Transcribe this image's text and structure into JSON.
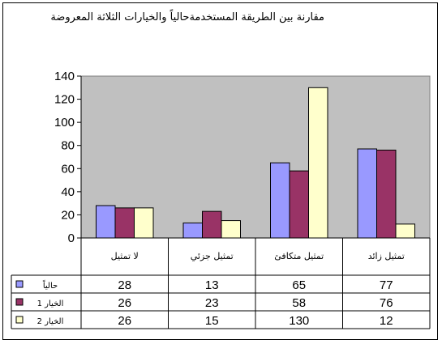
{
  "chart_data": {
    "type": "bar",
    "title": "مقارنة بين الطريقة المستخدمةحالياً والخيارات الثلاثة المعروضة",
    "xlabel": "",
    "ylabel": "",
    "categories": [
      "لا تمثيل",
      "تمثيل جزئي",
      "تمثيل متكافئ",
      "تمثيل زائد"
    ],
    "series": [
      {
        "name": "حالياً",
        "values": [
          28,
          13,
          65,
          77
        ],
        "color": "#9999ff"
      },
      {
        "name": "الخيار 1",
        "values": [
          26,
          23,
          58,
          76
        ],
        "color": "#993366"
      },
      {
        "name": "الخيار 2",
        "values": [
          26,
          15,
          130,
          12
        ],
        "color": "#ffffcc"
      }
    ],
    "ylim": [
      0,
      140
    ],
    "yticks": [
      0,
      20,
      40,
      60,
      80,
      100,
      120,
      140
    ],
    "grid": false,
    "plot_background": "#c0c0c0",
    "legend": "data-table-left"
  }
}
